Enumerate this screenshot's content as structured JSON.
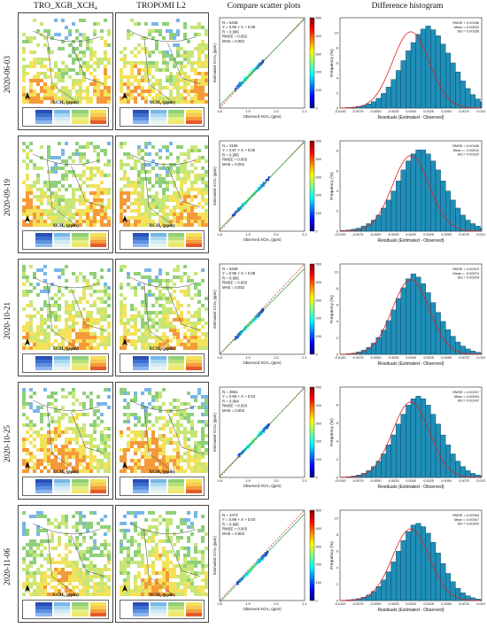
{
  "header": {
    "col_retrieval": "TRO_XGB_XCH₄",
    "col_tropomi": "TROPOMI L2",
    "col_scatter": "Compare scatter plots",
    "col_hist": "Difference histogram"
  },
  "map_legend_title": "XCH₄ (ppm)",
  "rows": [
    {
      "date": "2020-06-03"
    },
    {
      "date": "2020-09-19"
    },
    {
      "date": "2020-10-21"
    },
    {
      "date": "2020-10-25"
    },
    {
      "date": "2020-11-06"
    }
  ],
  "colors": {
    "map_low": "#3a6fd0",
    "map_mid": "#8fd07a",
    "map_high": "#f3e25a",
    "map_peak": "#f59a3a",
    "hist_bar": "#1f8fb8",
    "normal_curve": "#e02020",
    "scatter_line": "#2a9d3a",
    "one_to_one": "#d03030"
  },
  "chart_data": [
    {
      "type": "scatter",
      "row": "2020-06-03",
      "xlabel": "Observed XCH₄ (ppm)",
      "ylabel": "Estimated XCH₄ (ppm)",
      "xlim": [
        1.8,
        2.1
      ],
      "ylim": [
        1.8,
        2.1
      ],
      "colorbar_label": "Frequency (%)",
      "colorbar_range": [
        0,
        500
      ],
      "stats": [
        "N = 5446",
        "Y = 0.96 × X + 0.08",
        "R = 0.995",
        "RMSE = 0.002",
        "MAE = 0.002"
      ],
      "point_cloud": {
        "x_range": [
          1.855,
          1.955
        ],
        "slope": 0.96,
        "intercept": 0.08
      }
    },
    {
      "type": "scatter",
      "row": "2020-09-19",
      "xlabel": "Observed XCH₄ (ppm)",
      "ylabel": "Estimated XCH₄ (ppm)",
      "xlim": [
        1.8,
        2.1
      ],
      "ylim": [
        1.8,
        2.1
      ],
      "colorbar_label": "Frequency (%)",
      "colorbar_range": [
        0,
        500
      ],
      "stats": [
        "N = 3156",
        "Y = 0.97 × X + 0.06",
        "R = 0.995",
        "RMSE = 0.003",
        "MAE = 0.002"
      ],
      "point_cloud": {
        "x_range": [
          1.845,
          1.975
        ],
        "slope": 0.97,
        "intercept": 0.06
      }
    },
    {
      "type": "scatter",
      "row": "2020-10-21",
      "xlabel": "Observed XCH₄ (ppm)",
      "ylabel": "Estimated XCH₄ (ppm)",
      "xlim": [
        1.8,
        2.1
      ],
      "ylim": [
        1.8,
        2.1
      ],
      "colorbar_label": "Frequency (%)",
      "colorbar_range": [
        0,
        500
      ],
      "stats": [
        "N = 5348",
        "Y = 0.95 × X + 0.09",
        "R = 0.993",
        "RMSE = 0.003",
        "MAE = 0.002"
      ],
      "point_cloud": {
        "x_range": [
          1.855,
          1.955
        ],
        "slope": 0.95,
        "intercept": 0.09
      }
    },
    {
      "type": "scatter",
      "row": "2020-10-25",
      "xlabel": "Observed XCH₄ (ppm)",
      "ylabel": "Estimated XCH₄ (ppm)",
      "xlim": [
        1.8,
        2.1
      ],
      "ylim": [
        1.8,
        2.1
      ],
      "colorbar_label": "Frequency (%)",
      "colorbar_range": [
        0,
        500
      ],
      "stats": [
        "N = 2661",
        "Y = 0.98 × X + 0.04",
        "R = 0.994",
        "RMSE = 0.003",
        "MAE = 0.002"
      ],
      "point_cloud": {
        "x_range": [
          1.865,
          1.975
        ],
        "slope": 0.98,
        "intercept": 0.04
      }
    },
    {
      "type": "scatter",
      "row": "2020-11-06",
      "xlabel": "Observed XCH₄ (ppm)",
      "ylabel": "Estimated XCH₄ (ppm)",
      "xlim": [
        1.8,
        2.1
      ],
      "ylim": [
        1.8,
        2.1
      ],
      "colorbar_label": "Frequency (%)",
      "colorbar_range": [
        0,
        500
      ],
      "stats": [
        "N = 4473",
        "Y = 0.98 × X + 0.03",
        "R = 0.995",
        "RMSE = 0.003",
        "MAE = 0.002"
      ],
      "point_cloud": {
        "x_range": [
          1.86,
          1.97
        ],
        "slope": 0.98,
        "intercept": 0.03
      }
    },
    {
      "type": "bar",
      "row": "2020-06-03",
      "xlabel": "Residuals (Estimated - Observed)",
      "ylabel": "Frequency (%)",
      "xlim": [
        -0.01,
        0.01
      ],
      "ylim": [
        0,
        12
      ],
      "xticks": [
        "-0.0100",
        "-0.0075",
        "-0.0050",
        "-0.0025",
        "0.0000",
        "0.0025",
        "0.0050",
        "0.0075",
        "0.0100"
      ],
      "yticks": [
        "0",
        "2",
        "4",
        "6",
        "8",
        "10"
      ],
      "stats": [
        "RMSE = 0.00186",
        "Mean = 0.00002",
        "Std = 0.00186"
      ],
      "bin_start": -0.0105,
      "bin_width": 0.0007,
      "values": [
        0.02,
        0.04,
        0.07,
        0.12,
        0.2,
        0.34,
        0.55,
        0.85,
        1.3,
        1.95,
        2.8,
        3.8,
        5.0,
        6.3,
        7.6,
        8.7,
        9.8,
        10.5,
        10.9,
        10.4,
        9.6,
        8.5,
        7.3,
        6.0,
        4.8,
        3.6,
        2.6,
        1.8,
        1.2,
        0.8,
        0.5
      ]
    },
    {
      "type": "bar",
      "row": "2020-09-19",
      "xlabel": "Residuals (Estimated - Observed)",
      "ylabel": "Frequency (%)",
      "xlim": [
        -0.01,
        0.01
      ],
      "ylim": [
        0,
        9
      ],
      "xticks": [
        "-0.0100",
        "-0.0075",
        "-0.0050",
        "-0.0025",
        "0.0000",
        "0.0025",
        "0.0050",
        "0.0075",
        "0.0100"
      ],
      "yticks": [
        "0",
        "2",
        "4",
        "6",
        "8"
      ],
      "stats": [
        "RMSE = 0.00188",
        "Mean = -0.00011",
        "Std = 0.00187"
      ],
      "bin_start": -0.0105,
      "bin_width": 0.0007,
      "values": [
        0.05,
        0.08,
        0.12,
        0.2,
        0.3,
        0.5,
        0.75,
        1.1,
        1.6,
        2.3,
        3.1,
        4.0,
        5.0,
        6.1,
        7.0,
        7.7,
        8.1,
        8.1,
        7.7,
        7.0,
        6.1,
        5.0,
        4.0,
        3.1,
        2.3,
        1.6,
        1.1,
        0.75,
        0.5,
        0.3,
        0.2
      ]
    },
    {
      "type": "bar",
      "row": "2020-10-21",
      "xlabel": "Residuals (Estimated - Observed)",
      "ylabel": "Frequency (%)",
      "xlim": [
        -0.01,
        0.01
      ],
      "ylim": [
        0,
        11
      ],
      "xticks": [
        "-0.0100",
        "-0.0075",
        "-0.0050",
        "-0.0025",
        "0.0000",
        "0.0025",
        "0.0050",
        "0.0075",
        "0.0100"
      ],
      "yticks": [
        "0",
        "2",
        "4",
        "6",
        "8",
        "10"
      ],
      "stats": [
        "RMSE = 0.00219",
        "Mean = -0.00074",
        "Std = 0.00209"
      ],
      "bin_start": -0.0105,
      "bin_width": 0.0007,
      "values": [
        0.02,
        0.04,
        0.08,
        0.15,
        0.28,
        0.5,
        0.85,
        1.35,
        2.05,
        2.95,
        4.1,
        5.4,
        6.8,
        8.1,
        9.2,
        9.8,
        9.4,
        8.6,
        7.5,
        6.3,
        5.1,
        4.0,
        3.0,
        2.2,
        1.5,
        1.0,
        0.65,
        0.4,
        0.25,
        0.14,
        0.08
      ]
    },
    {
      "type": "bar",
      "row": "2020-10-25",
      "xlabel": "Residuals (Estimated - Observed)",
      "ylabel": "Frequency (%)",
      "xlim": [
        -0.01,
        0.01
      ],
      "ylim": [
        0,
        10
      ],
      "xticks": [
        "-0.0100",
        "-0.0075",
        "-0.0050",
        "-0.0025",
        "0.0000",
        "0.0025",
        "0.0050",
        "0.0075",
        "0.0100"
      ],
      "yticks": [
        "0",
        "2",
        "4",
        "6",
        "8"
      ],
      "stats": [
        "RMSE = 0.00247",
        "Mean = 0.00004",
        "Std = 0.00247"
      ],
      "bin_start": -0.0105,
      "bin_width": 0.0007,
      "values": [
        0.02,
        0.04,
        0.08,
        0.15,
        0.26,
        0.45,
        0.75,
        1.2,
        1.8,
        2.6,
        3.6,
        4.7,
        5.9,
        7.0,
        8.0,
        8.7,
        9.0,
        8.7,
        8.0,
        7.0,
        5.9,
        4.7,
        3.6,
        2.6,
        1.8,
        1.2,
        0.75,
        0.45,
        0.26,
        0.15,
        0.08
      ]
    },
    {
      "type": "bar",
      "row": "2020-11-06",
      "xlabel": "Residuals (Estimated - Observed)",
      "ylabel": "Frequency (%)",
      "xlim": [
        -0.01,
        0.01
      ],
      "ylim": [
        0,
        11
      ],
      "xticks": [
        "-0.0100",
        "-0.0075",
        "-0.0050",
        "-0.0025",
        "0.0000",
        "0.0025",
        "0.0050",
        "0.0075",
        "0.0100"
      ],
      "yticks": [
        "0",
        "2",
        "4",
        "6",
        "8",
        "10"
      ],
      "stats": [
        "RMSE = 0.00264",
        "Mean = 0.00007",
        "Std = 0.00263"
      ],
      "bin_start": -0.0105,
      "bin_width": 0.0007,
      "values": [
        0.02,
        0.04,
        0.07,
        0.13,
        0.23,
        0.4,
        0.68,
        1.1,
        1.7,
        2.5,
        3.5,
        4.7,
        6.0,
        7.3,
        8.4,
        9.2,
        9.4,
        9.0,
        8.2,
        7.1,
        5.8,
        4.5,
        3.3,
        2.3,
        1.5,
        0.95,
        0.58,
        0.34,
        0.19,
        0.1,
        0.05
      ]
    }
  ]
}
